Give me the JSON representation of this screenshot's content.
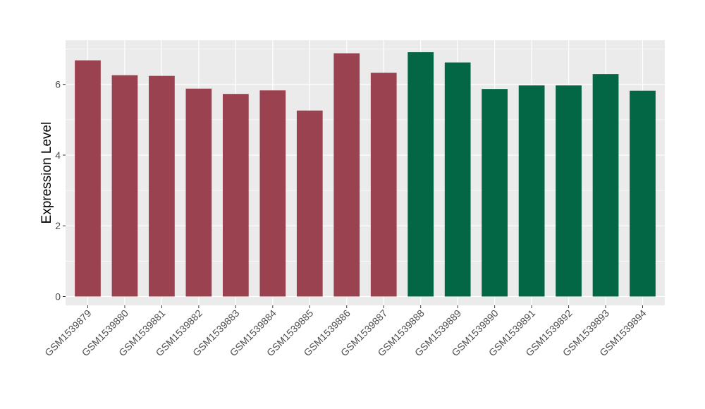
{
  "chart_data": {
    "type": "bar",
    "title": "",
    "xlabel": "",
    "ylabel": "Expression Level",
    "ylim": [
      -0.25,
      7.25
    ],
    "yticks": [
      0,
      2,
      4,
      6
    ],
    "grid": true,
    "legend": "none",
    "categories": [
      "GSM1539879",
      "GSM1539880",
      "GSM1539881",
      "GSM1539882",
      "GSM1539883",
      "GSM1539884",
      "GSM1539885",
      "GSM1539886",
      "GSM1539887",
      "GSM1539888",
      "GSM1539889",
      "GSM1539890",
      "GSM1539891",
      "GSM1539892",
      "GSM1539893",
      "GSM1539894"
    ],
    "values": [
      6.68,
      6.26,
      6.24,
      5.88,
      5.73,
      5.83,
      5.26,
      6.88,
      6.33,
      6.91,
      6.62,
      5.87,
      5.97,
      5.97,
      6.29,
      5.82
    ],
    "colors": [
      "#9A4250",
      "#9A4250",
      "#9A4250",
      "#9A4250",
      "#9A4250",
      "#9A4250",
      "#9A4250",
      "#9A4250",
      "#9A4250",
      "#036645",
      "#036645",
      "#036645",
      "#036645",
      "#036645",
      "#036645",
      "#036645"
    ],
    "panel_background": "#EBEBEB",
    "grid_color": "#FFFFFF"
  }
}
